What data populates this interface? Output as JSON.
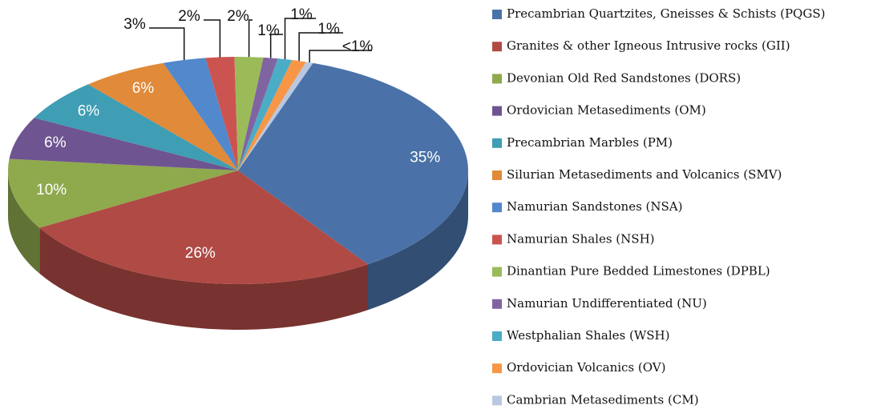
{
  "chart_data": {
    "type": "pie",
    "categories": [
      "Precambrian Quartzites, Gneisses & Schists (PQGS)",
      "Granites & other Igneous Intrusive rocks (GII)",
      "Devonian Old Red Sandstones (DORS)",
      "Ordovician Metasediments (OM)",
      "Precambrian Marbles (PM)",
      "Silurian Metasediments and Volcanics (SMV)",
      "Namurian Sandstones (NSA)",
      "Namurian Shales (NSH)",
      "Dinantian Pure Bedded Limestones (DPBL)",
      "Namurian Undifferentiated (NU)",
      "Westphalian Shales (WSH)",
      "Ordovician Volcanics (OV)",
      "Cambrian Metasediments (CM)"
    ],
    "values": [
      35,
      26,
      10,
      6,
      6,
      6,
      3,
      2,
      2,
      1,
      1,
      1,
      0.5
    ],
    "value_labels": [
      "35%",
      "26%",
      "10%",
      "6%",
      "6%",
      "6%",
      "3%",
      "2%",
      "2%",
      "1%",
      "1%",
      "1%",
      "<1%"
    ],
    "colors": [
      "#4a72a8",
      "#b04a45",
      "#8fa94d",
      "#6e5491",
      "#3f9db4",
      "#e08a3a",
      "#5288cc",
      "#cc5450",
      "#9bbb59",
      "#8064a2",
      "#4bacc6",
      "#f79646",
      "#b9c8e0"
    ],
    "legend": "right"
  }
}
